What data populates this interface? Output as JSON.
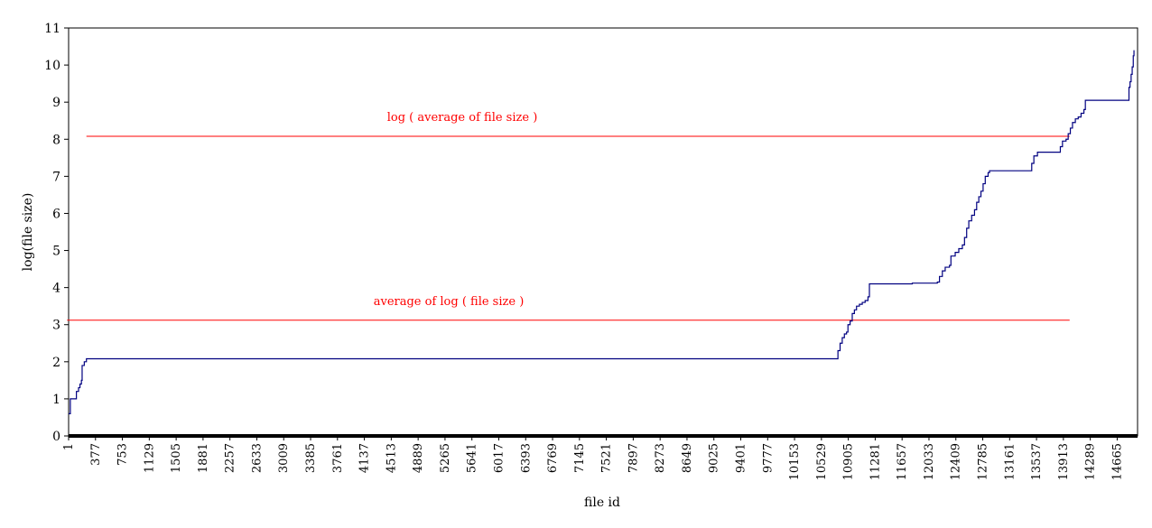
{
  "chart_data": {
    "type": "line",
    "xlabel": "file id",
    "ylabel": "log(file size)",
    "ylim": [
      0,
      11
    ],
    "y_ticks": [
      "0",
      "1",
      "2",
      "3",
      "4",
      "5",
      "6",
      "7",
      "8",
      "9",
      "10",
      "11"
    ],
    "x_ticks": [
      "1",
      "377",
      "753",
      "1129",
      "1505",
      "1881",
      "2257",
      "2633",
      "3009",
      "3385",
      "3761",
      "4137",
      "4513",
      "4889",
      "5265",
      "5641",
      "6017",
      "6393",
      "6769",
      "7145",
      "7521",
      "7897",
      "8273",
      "8649",
      "9025",
      "9401",
      "9777",
      "10153",
      "10529",
      "10905",
      "11281",
      "11657",
      "12033",
      "12409",
      "12785",
      "13161",
      "13537",
      "13913",
      "14289",
      "14665"
    ],
    "xlim": [
      1,
      14900
    ],
    "grid": false,
    "legend": "none",
    "series": [
      {
        "color": "#000080",
        "points": [
          [
            1,
            0.6
          ],
          [
            20,
            0.6
          ],
          [
            25,
            1.0
          ],
          [
            100,
            1.0
          ],
          [
            110,
            1.2
          ],
          [
            140,
            1.3
          ],
          [
            160,
            1.4
          ],
          [
            180,
            1.5
          ],
          [
            190,
            1.9
          ],
          [
            220,
            2.0
          ],
          [
            250,
            2.08
          ],
          [
            10740,
            2.08
          ],
          [
            10760,
            2.3
          ],
          [
            10790,
            2.5
          ],
          [
            10820,
            2.65
          ],
          [
            10850,
            2.75
          ],
          [
            10880,
            2.8
          ],
          [
            10900,
            3.0
          ],
          [
            10930,
            3.1
          ],
          [
            10960,
            3.3
          ],
          [
            10990,
            3.4
          ],
          [
            11020,
            3.5
          ],
          [
            11060,
            3.55
          ],
          [
            11100,
            3.6
          ],
          [
            11140,
            3.65
          ],
          [
            11180,
            3.75
          ],
          [
            11200,
            4.1
          ],
          [
            11780,
            4.1
          ],
          [
            11800,
            4.12
          ],
          [
            12150,
            4.15
          ],
          [
            12180,
            4.3
          ],
          [
            12220,
            4.45
          ],
          [
            12260,
            4.55
          ],
          [
            12320,
            4.6
          ],
          [
            12340,
            4.85
          ],
          [
            12400,
            4.95
          ],
          [
            12450,
            5.05
          ],
          [
            12500,
            5.15
          ],
          [
            12530,
            5.35
          ],
          [
            12560,
            5.6
          ],
          [
            12590,
            5.8
          ],
          [
            12630,
            5.95
          ],
          [
            12670,
            6.1
          ],
          [
            12700,
            6.3
          ],
          [
            12730,
            6.45
          ],
          [
            12760,
            6.6
          ],
          [
            12790,
            6.8
          ],
          [
            12820,
            7.0
          ],
          [
            12860,
            7.1
          ],
          [
            12880,
            7.15
          ],
          [
            13450,
            7.15
          ],
          [
            13470,
            7.35
          ],
          [
            13500,
            7.55
          ],
          [
            13550,
            7.65
          ],
          [
            13840,
            7.65
          ],
          [
            13870,
            7.8
          ],
          [
            13900,
            7.95
          ],
          [
            13950,
            8.0
          ],
          [
            13980,
            8.15
          ],
          [
            14010,
            8.3
          ],
          [
            14040,
            8.45
          ],
          [
            14080,
            8.55
          ],
          [
            14120,
            8.6
          ],
          [
            14160,
            8.7
          ],
          [
            14200,
            8.8
          ],
          [
            14220,
            9.05
          ],
          [
            14820,
            9.05
          ],
          [
            14830,
            9.4
          ],
          [
            14845,
            9.55
          ],
          [
            14860,
            9.75
          ],
          [
            14875,
            9.95
          ],
          [
            14890,
            10.25
          ],
          [
            14900,
            10.4
          ]
        ]
      }
    ],
    "reference_lines": [
      {
        "label": "log ( average of file size )",
        "y": 8.08,
        "x_from": 250,
        "x_to": 14000,
        "color": "#ff0000"
      },
      {
        "label": "average of log ( file size )",
        "y": 3.12,
        "x_from": -20,
        "x_to": 14000,
        "color": "#ff0000"
      }
    ]
  }
}
